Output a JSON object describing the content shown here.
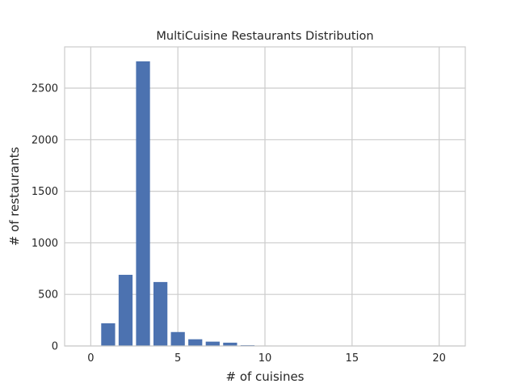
{
  "chart_data": {
    "type": "bar",
    "title": "MultiCuisine Restaurants Distribution",
    "xlabel": "# of cuisines",
    "ylabel": "# of restaurants",
    "x": [
      1,
      2,
      3,
      4,
      5,
      6,
      7,
      8,
      9,
      10,
      11,
      12,
      13,
      14,
      15,
      16,
      17,
      18,
      19,
      20
    ],
    "values": [
      220,
      690,
      2760,
      620,
      135,
      65,
      42,
      32,
      8,
      4,
      2,
      1,
      1,
      1,
      1,
      1,
      1,
      1,
      1,
      1
    ],
    "xlim": [
      -1.5,
      21.5
    ],
    "ylim": [
      0,
      2900
    ],
    "xticks": [
      0,
      5,
      10,
      15,
      20
    ],
    "yticks": [
      0,
      500,
      1000,
      1500,
      2000,
      2500
    ],
    "bar_color": "#4c72b0",
    "grid": true,
    "legend": "none"
  }
}
